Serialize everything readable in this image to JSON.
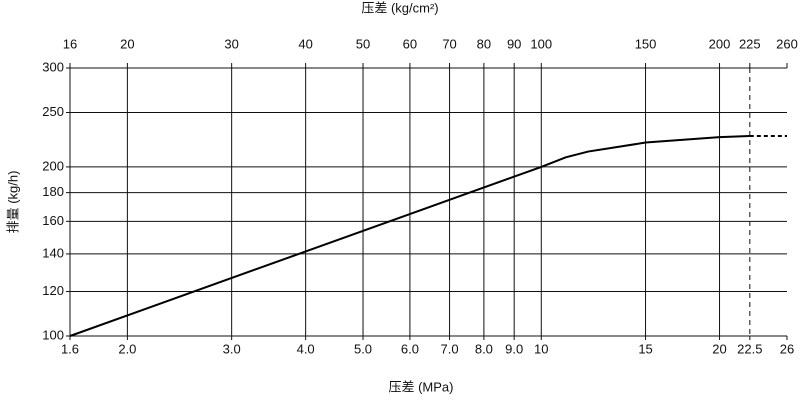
{
  "chart_data": {
    "type": "line",
    "title": "压差 (kg/cm²)",
    "xlabel": "压差 (MPa)",
    "ylabel": "排量 (kg/h)",
    "xscale": "log",
    "yscale": "log",
    "xlim": [
      1.6,
      26
    ],
    "ylim": [
      100,
      300
    ],
    "xticks": [
      1.6,
      {
        "value": 2,
        "label": "2.0"
      },
      {
        "value": 3,
        "label": "3.0"
      },
      {
        "value": 4,
        "label": "4.0"
      },
      {
        "value": 5,
        "label": "5.0"
      },
      {
        "value": 6,
        "label": "6.0"
      },
      {
        "value": 7,
        "label": "7.0"
      },
      {
        "value": 8,
        "label": "8.0"
      },
      {
        "value": 9,
        "label": "9.0"
      },
      10,
      15,
      20,
      22.5,
      26
    ],
    "x2lim": [
      16,
      260
    ],
    "x2ticks": [
      16,
      20,
      30,
      40,
      50,
      60,
      70,
      80,
      90,
      100,
      150,
      200,
      225,
      260
    ],
    "yticks": [
      100,
      120,
      140,
      160,
      180,
      200,
      250,
      300
    ],
    "grid": true,
    "last_inner_xgrid_dashed": true,
    "series": [
      {
        "color": "#000000",
        "dash": false,
        "x": [
          1.6,
          10,
          11,
          12,
          15,
          20,
          22.5
        ],
        "values": [
          100,
          200,
          208,
          213,
          221,
          226,
          227
        ]
      },
      {
        "color": "#000000",
        "dash": true,
        "x": [
          22.5,
          26
        ],
        "values": [
          227,
          227
        ]
      }
    ]
  }
}
